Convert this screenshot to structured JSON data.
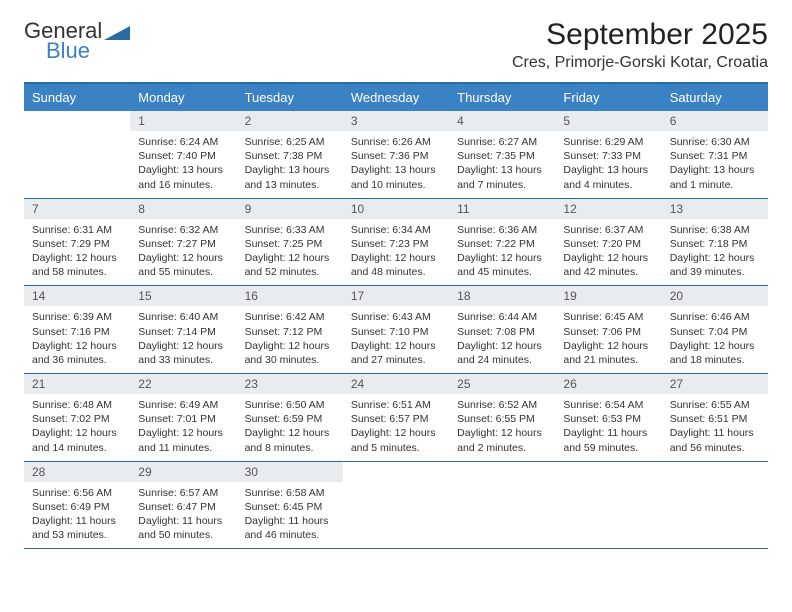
{
  "logo": {
    "part1": "General",
    "part2": "Blue",
    "iconColor": "#2b6ca3"
  },
  "title": "September 2025",
  "location": "Cres, Primorje-Gorski Kotar, Croatia",
  "header_bg": "#3b82c4",
  "daynum_bg": "#e8ecef",
  "border_color": "#2b6ca3",
  "weekdays": [
    "Sunday",
    "Monday",
    "Tuesday",
    "Wednesday",
    "Thursday",
    "Friday",
    "Saturday"
  ],
  "weeks": [
    [
      {
        "n": "",
        "sr": "",
        "ss": "",
        "dl": ""
      },
      {
        "n": "1",
        "sr": "Sunrise: 6:24 AM",
        "ss": "Sunset: 7:40 PM",
        "dl": "Daylight: 13 hours and 16 minutes."
      },
      {
        "n": "2",
        "sr": "Sunrise: 6:25 AM",
        "ss": "Sunset: 7:38 PM",
        "dl": "Daylight: 13 hours and 13 minutes."
      },
      {
        "n": "3",
        "sr": "Sunrise: 6:26 AM",
        "ss": "Sunset: 7:36 PM",
        "dl": "Daylight: 13 hours and 10 minutes."
      },
      {
        "n": "4",
        "sr": "Sunrise: 6:27 AM",
        "ss": "Sunset: 7:35 PM",
        "dl": "Daylight: 13 hours and 7 minutes."
      },
      {
        "n": "5",
        "sr": "Sunrise: 6:29 AM",
        "ss": "Sunset: 7:33 PM",
        "dl": "Daylight: 13 hours and 4 minutes."
      },
      {
        "n": "6",
        "sr": "Sunrise: 6:30 AM",
        "ss": "Sunset: 7:31 PM",
        "dl": "Daylight: 13 hours and 1 minute."
      }
    ],
    [
      {
        "n": "7",
        "sr": "Sunrise: 6:31 AM",
        "ss": "Sunset: 7:29 PM",
        "dl": "Daylight: 12 hours and 58 minutes."
      },
      {
        "n": "8",
        "sr": "Sunrise: 6:32 AM",
        "ss": "Sunset: 7:27 PM",
        "dl": "Daylight: 12 hours and 55 minutes."
      },
      {
        "n": "9",
        "sr": "Sunrise: 6:33 AM",
        "ss": "Sunset: 7:25 PM",
        "dl": "Daylight: 12 hours and 52 minutes."
      },
      {
        "n": "10",
        "sr": "Sunrise: 6:34 AM",
        "ss": "Sunset: 7:23 PM",
        "dl": "Daylight: 12 hours and 48 minutes."
      },
      {
        "n": "11",
        "sr": "Sunrise: 6:36 AM",
        "ss": "Sunset: 7:22 PM",
        "dl": "Daylight: 12 hours and 45 minutes."
      },
      {
        "n": "12",
        "sr": "Sunrise: 6:37 AM",
        "ss": "Sunset: 7:20 PM",
        "dl": "Daylight: 12 hours and 42 minutes."
      },
      {
        "n": "13",
        "sr": "Sunrise: 6:38 AM",
        "ss": "Sunset: 7:18 PM",
        "dl": "Daylight: 12 hours and 39 minutes."
      }
    ],
    [
      {
        "n": "14",
        "sr": "Sunrise: 6:39 AM",
        "ss": "Sunset: 7:16 PM",
        "dl": "Daylight: 12 hours and 36 minutes."
      },
      {
        "n": "15",
        "sr": "Sunrise: 6:40 AM",
        "ss": "Sunset: 7:14 PM",
        "dl": "Daylight: 12 hours and 33 minutes."
      },
      {
        "n": "16",
        "sr": "Sunrise: 6:42 AM",
        "ss": "Sunset: 7:12 PM",
        "dl": "Daylight: 12 hours and 30 minutes."
      },
      {
        "n": "17",
        "sr": "Sunrise: 6:43 AM",
        "ss": "Sunset: 7:10 PM",
        "dl": "Daylight: 12 hours and 27 minutes."
      },
      {
        "n": "18",
        "sr": "Sunrise: 6:44 AM",
        "ss": "Sunset: 7:08 PM",
        "dl": "Daylight: 12 hours and 24 minutes."
      },
      {
        "n": "19",
        "sr": "Sunrise: 6:45 AM",
        "ss": "Sunset: 7:06 PM",
        "dl": "Daylight: 12 hours and 21 minutes."
      },
      {
        "n": "20",
        "sr": "Sunrise: 6:46 AM",
        "ss": "Sunset: 7:04 PM",
        "dl": "Daylight: 12 hours and 18 minutes."
      }
    ],
    [
      {
        "n": "21",
        "sr": "Sunrise: 6:48 AM",
        "ss": "Sunset: 7:02 PM",
        "dl": "Daylight: 12 hours and 14 minutes."
      },
      {
        "n": "22",
        "sr": "Sunrise: 6:49 AM",
        "ss": "Sunset: 7:01 PM",
        "dl": "Daylight: 12 hours and 11 minutes."
      },
      {
        "n": "23",
        "sr": "Sunrise: 6:50 AM",
        "ss": "Sunset: 6:59 PM",
        "dl": "Daylight: 12 hours and 8 minutes."
      },
      {
        "n": "24",
        "sr": "Sunrise: 6:51 AM",
        "ss": "Sunset: 6:57 PM",
        "dl": "Daylight: 12 hours and 5 minutes."
      },
      {
        "n": "25",
        "sr": "Sunrise: 6:52 AM",
        "ss": "Sunset: 6:55 PM",
        "dl": "Daylight: 12 hours and 2 minutes."
      },
      {
        "n": "26",
        "sr": "Sunrise: 6:54 AM",
        "ss": "Sunset: 6:53 PM",
        "dl": "Daylight: 11 hours and 59 minutes."
      },
      {
        "n": "27",
        "sr": "Sunrise: 6:55 AM",
        "ss": "Sunset: 6:51 PM",
        "dl": "Daylight: 11 hours and 56 minutes."
      }
    ],
    [
      {
        "n": "28",
        "sr": "Sunrise: 6:56 AM",
        "ss": "Sunset: 6:49 PM",
        "dl": "Daylight: 11 hours and 53 minutes."
      },
      {
        "n": "29",
        "sr": "Sunrise: 6:57 AM",
        "ss": "Sunset: 6:47 PM",
        "dl": "Daylight: 11 hours and 50 minutes."
      },
      {
        "n": "30",
        "sr": "Sunrise: 6:58 AM",
        "ss": "Sunset: 6:45 PM",
        "dl": "Daylight: 11 hours and 46 minutes."
      },
      {
        "n": "",
        "sr": "",
        "ss": "",
        "dl": ""
      },
      {
        "n": "",
        "sr": "",
        "ss": "",
        "dl": ""
      },
      {
        "n": "",
        "sr": "",
        "ss": "",
        "dl": ""
      },
      {
        "n": "",
        "sr": "",
        "ss": "",
        "dl": ""
      }
    ]
  ]
}
